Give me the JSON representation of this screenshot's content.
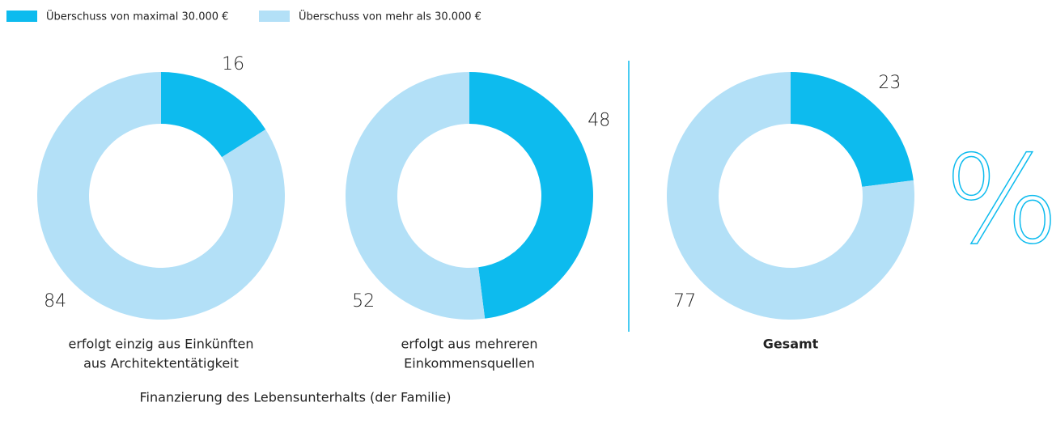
{
  "legend": [
    {
      "name": "Überschuss von maximal 30.000 €",
      "color": "#0dbbee"
    },
    {
      "name": "Überschuss von mehr als 30.000 €",
      "color": "#b3e0f7"
    }
  ],
  "unit": "%",
  "caption": "Finanzierung des Lebensunterhalts (der Familie)",
  "chart_data": [
    {
      "type": "donut",
      "title": [
        "erfolgt einzig aus Einkünften",
        "aus Architektentätigkeit"
      ],
      "values": [
        16,
        84
      ],
      "colors": [
        "#0dbbee",
        "#b3e0f7"
      ]
    },
    {
      "type": "donut",
      "title": [
        "erfolgt aus mehreren",
        "Einkommensquellen"
      ],
      "values": [
        48,
        52
      ],
      "colors": [
        "#0dbbee",
        "#b3e0f7"
      ]
    },
    {
      "type": "donut",
      "title": [
        "Gesamt"
      ],
      "title_bold": true,
      "values": [
        23,
        77
      ],
      "colors": [
        "#0dbbee",
        "#b3e0f7"
      ]
    }
  ]
}
